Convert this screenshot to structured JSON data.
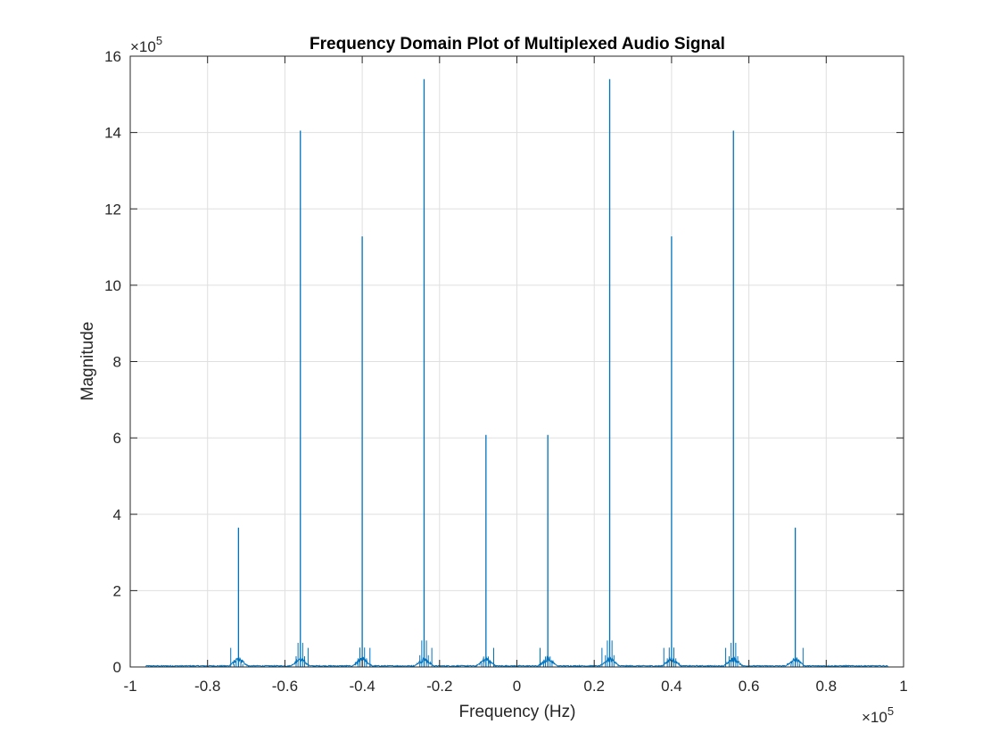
{
  "chart_data": {
    "type": "line",
    "title": "Frequency Domain Plot of Multiplexed Audio Signal",
    "xlabel": "Frequency (Hz)",
    "ylabel": "Magnitude",
    "xlim": [
      -100000,
      100000
    ],
    "ylim": [
      0,
      1600000
    ],
    "x_ticks": [
      -100000,
      -80000,
      -60000,
      -40000,
      -20000,
      0,
      20000,
      40000,
      60000,
      80000,
      100000
    ],
    "x_tick_labels": [
      "-1",
      "-0.8",
      "-0.6",
      "-0.4",
      "-0.2",
      "0",
      "0.2",
      "0.4",
      "0.6",
      "0.8",
      "1"
    ],
    "x_exponent_label": "×10",
    "x_exponent_power": "5",
    "y_ticks": [
      0,
      200000,
      400000,
      600000,
      800000,
      1000000,
      1200000,
      1400000,
      1600000
    ],
    "y_tick_labels": [
      "0",
      "2",
      "4",
      "6",
      "8",
      "10",
      "12",
      "14",
      "16"
    ],
    "y_exponent_label": "×10",
    "y_exponent_power": "5",
    "grid": true,
    "line_color": "#0072BD",
    "signal_range": [
      -96000,
      96000
    ],
    "series": [
      {
        "peaks": [
          {
            "x": -72000,
            "y": 365000
          },
          {
            "x": -56000,
            "y": 1405000
          },
          {
            "x": -40000,
            "y": 1128000
          },
          {
            "x": -24000,
            "y": 1540000
          },
          {
            "x": -8000,
            "y": 608000
          },
          {
            "x": 8000,
            "y": 608000
          },
          {
            "x": 24000,
            "y": 1540000
          },
          {
            "x": 40000,
            "y": 1128000
          },
          {
            "x": 56000,
            "y": 1405000
          },
          {
            "x": 72000,
            "y": 365000
          }
        ],
        "minor_peaks": [
          {
            "x": -74000,
            "y": 50000
          },
          {
            "x": -54000,
            "y": 50000
          },
          {
            "x": -38000,
            "y": 50000
          },
          {
            "x": -22000,
            "y": 50000
          },
          {
            "x": -6000,
            "y": 50000
          },
          {
            "x": 6000,
            "y": 50000
          },
          {
            "x": 22000,
            "y": 50000
          },
          {
            "x": 38000,
            "y": 50000
          },
          {
            "x": 54000,
            "y": 50000
          },
          {
            "x": 74000,
            "y": 50000
          }
        ]
      }
    ]
  }
}
